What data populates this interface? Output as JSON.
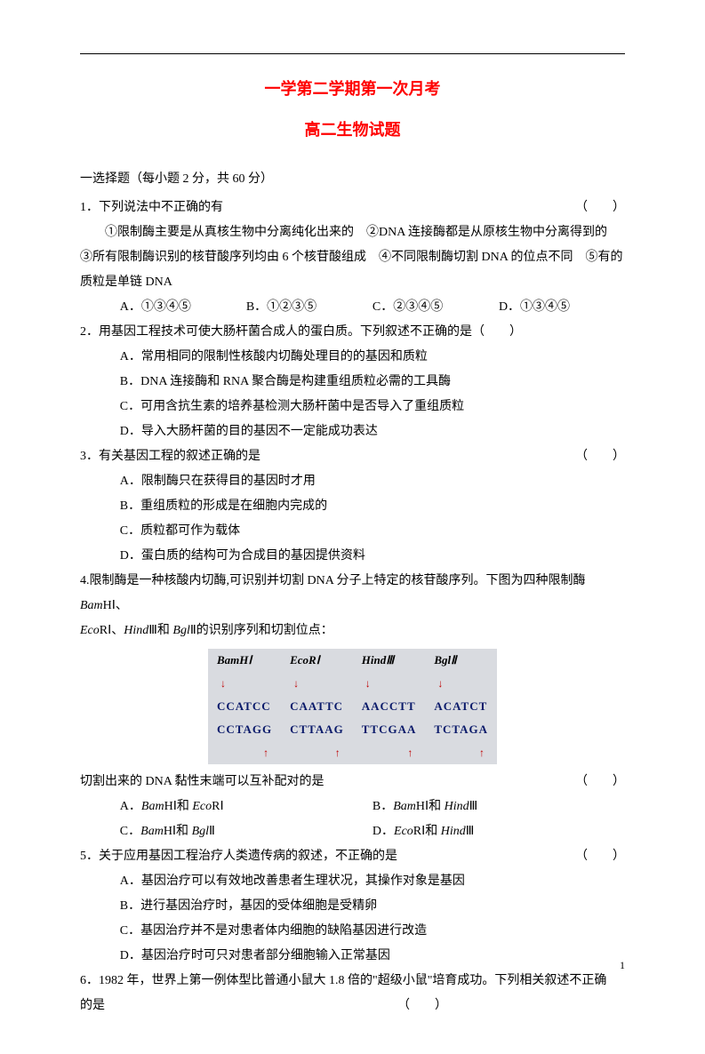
{
  "colors": {
    "title": "#ff0000",
    "text": "#000000",
    "table_bg": "#d9dbe0",
    "seq_color": "#0a1a6a",
    "arrow_color": "#c00000"
  },
  "title_main": "一学第二学期第一次月考",
  "title_sub": "高二生物试题",
  "section_head": "一选择题（每小题 2 分，共 60 分）",
  "paren_blank": "（　　）",
  "q1": {
    "stem": "1．下列说法中不正确的有",
    "detail": "　　①限制酶主要是从真核生物中分离纯化出来的　②DNA 连接酶都是从原核生物中分离得到的　③所有限制酶识别的核苷酸序列均由 6 个核苷酸组成　④不同限制酶切割 DNA 的位点不同　⑤有的质粒是单链 DNA",
    "opts": {
      "A": "A．①③④⑤",
      "B": "B．①②③⑤",
      "C": "C．②③④⑤",
      "D": "D．①③④⑤"
    }
  },
  "q2": {
    "stem": "2．用基因工程技术可使大肠杆菌合成人的蛋白质。下列叙述不正确的是（　　）",
    "opts": {
      "A": "A．常用相同的限制性核酸内切酶处理目的的基因和质粒",
      "B": "B．DNA 连接酶和 RNA 聚合酶是构建重组质粒必需的工具酶",
      "C": "C．可用含抗生素的培养基检测大肠杆菌中是否导入了重组质粒",
      "D": "D．导入大肠杆菌的目的基因不一定能成功表达"
    }
  },
  "q3": {
    "stem": "3．有关基因工程的叙述正确的是",
    "opts": {
      "A": "A．限制酶只在获得目的基因时才用",
      "B": "B．重组质粒的形成是在细胞内完成的",
      "C": "C．质粒都可作为载体",
      "D": "D．蛋白质的结构可为合成目的基因提供资料"
    }
  },
  "q4": {
    "stem_a": "4.限制酶是一种核酸内切酶,可识别并切割 DNA 分子上特定的核苷酸序列。下图为四种限制酶 ",
    "stem_enz1": "Bam",
    "stem_enz1b": "HⅠ、",
    "stem_line2a": "Eco",
    "stem_line2b": "RⅠ、",
    "stem_line2c": "Hind",
    "stem_line2d": "Ⅲ和 ",
    "stem_line2e": "Bgl",
    "stem_line2f": "Ⅱ的识别序列和切割位点：",
    "table": {
      "headers": [
        "BamHⅠ",
        "EcoRⅠ",
        "HindⅢ",
        "BglⅡ"
      ],
      "top_seq": [
        "CCATCC",
        "CAATTC",
        "AACCTT",
        "ACATCT"
      ],
      "bot_seq": [
        "CCTAGG",
        "CTTAAG",
        "TTCGAA",
        "TCTAGA"
      ]
    },
    "question": "切割出来的 DNA 黏性末端可以互补配对的是",
    "opts": {
      "A_pre": "A．",
      "A_e1": "Bam",
      "A_e1b": "HⅠ和 ",
      "A_e2": "Eco",
      "A_e2b": "RⅠ",
      "B_pre": "B．",
      "B_e1": "Bam",
      "B_e1b": "HⅠ和 ",
      "B_e2": "Hind",
      "B_e2b": "Ⅲ",
      "C_pre": "C．",
      "C_e1": "Bam",
      "C_e1b": "HⅠ和 ",
      "C_e2": "Bgl",
      "C_e2b": "Ⅱ",
      "D_pre": "D．",
      "D_e1": "Eco",
      "D_e1b": "RⅠ和 ",
      "D_e2": "Hind",
      "D_e2b": "Ⅲ"
    }
  },
  "q5": {
    "stem": "5．关于应用基因工程治疗人类遗传病的叙述，不正确的是",
    "opts": {
      "A": "A．基因治疗可以有效地改善患者生理状况，其操作对象是基因",
      "B": "B．进行基因治疗时，基因的受体细胞是受精卵",
      "C": "C．基因治疗并不是对患者体内细胞的缺陷基因进行改造",
      "D": "D．基因治疗时可只对患者部分细胞输入正常基因"
    }
  },
  "q6": {
    "stem": "6．1982 年，世界上第一例体型比普通小鼠大 1.8 倍的\"超级小鼠\"培育成功。下列相关叙述不正确",
    "stem2": "的是"
  },
  "page_num": "1"
}
